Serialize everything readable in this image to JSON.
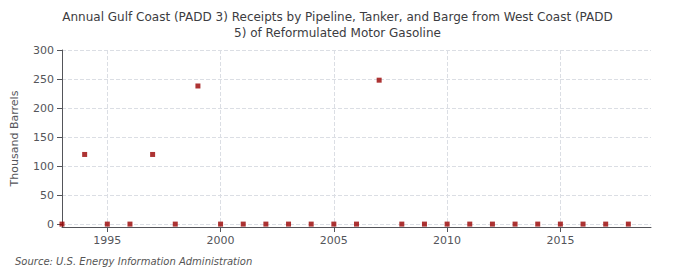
{
  "chart_data": {
    "type": "scatter",
    "title": "Annual Gulf Coast (PADD 3) Receipts by Pipeline, Tanker, and Barge from West Coast (PADD\n5) of Reformulated Motor Gasoline",
    "ylabel": "Thousand Barrels",
    "source": "Source: U.S. Energy Information Administration",
    "x": [
      1993,
      1994,
      1995,
      1996,
      1997,
      1998,
      1999,
      2000,
      2001,
      2002,
      2003,
      2004,
      2005,
      2006,
      2007,
      2008,
      2009,
      2010,
      2011,
      2012,
      2013,
      2014,
      2015,
      2016,
      2017,
      2018
    ],
    "values": [
      0,
      120,
      0,
      0,
      120,
      0,
      238,
      0,
      0,
      0,
      0,
      0,
      0,
      0,
      248,
      0,
      0,
      0,
      0,
      0,
      0,
      0,
      0,
      0,
      0,
      0
    ],
    "color": "#990000",
    "marker": "square",
    "xlim": [
      1993,
      2019
    ],
    "ylim": [
      -5,
      300
    ],
    "xticks": [
      1995,
      2000,
      2005,
      2010,
      2015
    ],
    "yticks": [
      0,
      50,
      100,
      150,
      200,
      250,
      300
    ],
    "grid": true
  }
}
